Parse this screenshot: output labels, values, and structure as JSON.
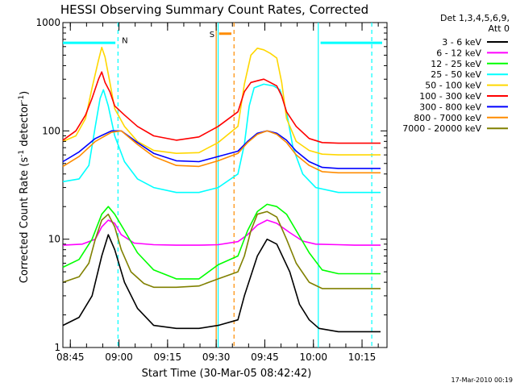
{
  "chart_data": {
    "type": "line",
    "title": "HESSI Observing Summary Count Rates, Corrected",
    "xlabel": "Start Time (30-Mar-05 08:42:42)",
    "ylabel_main": "Corrected Count Rate (s",
    "ylabel_sup1": "-1",
    "ylabel_mid": " detector",
    "ylabel_sup2": "-1",
    "ylabel_end": ")",
    "y_scale": "log",
    "ylim": [
      1,
      1000
    ],
    "xlim_minutes": [
      0,
      100
    ],
    "y_ticks": [
      {
        "value": 1,
        "label": "1"
      },
      {
        "value": 10,
        "label": "10"
      },
      {
        "value": 100,
        "label": "100"
      },
      {
        "value": 1000,
        "label": "1000"
      }
    ],
    "x_ticks": [
      {
        "minute": 2.3,
        "label": "08:45"
      },
      {
        "minute": 17.3,
        "label": "09:00"
      },
      {
        "minute": 32.3,
        "label": "09:15"
      },
      {
        "minute": 47.3,
        "label": "09:30"
      },
      {
        "minute": 62.3,
        "label": "09:45"
      },
      {
        "minute": 77.3,
        "label": "10:00"
      },
      {
        "minute": 92.3,
        "label": "10:15"
      }
    ],
    "legend_header_1": "Det 1,3,4,5,6,9,",
    "legend_header_2": "Att 0",
    "legend_placement": "right",
    "series": [
      {
        "name": "3 - 6 keV",
        "color": "#000000",
        "x": [
          0,
          5,
          9,
          12,
          14,
          16,
          19,
          23,
          28,
          35,
          42,
          47.9,
          54,
          56,
          60,
          63,
          66,
          70,
          73,
          76,
          79,
          85,
          90,
          95,
          98
        ],
        "y": [
          1.6,
          1.9,
          3,
          7,
          11,
          8,
          4,
          2.3,
          1.6,
          1.5,
          1.5,
          1.6,
          1.8,
          3,
          7,
          10,
          9,
          5,
          2.5,
          1.8,
          1.5,
          1.4,
          1.4,
          1.4,
          1.4
        ]
      },
      {
        "name": "6 - 12 keV",
        "color": "#ff00ff",
        "x": [
          0,
          6,
          10,
          12,
          14,
          16,
          18,
          22,
          28,
          35,
          42,
          47.9,
          54,
          57,
          60,
          63,
          66,
          70,
          74,
          78,
          85,
          90,
          95,
          98
        ],
        "y": [
          8.8,
          9,
          10,
          13,
          15,
          14,
          11,
          9.2,
          8.9,
          8.8,
          8.8,
          8.9,
          9.5,
          11,
          13.5,
          15,
          14,
          11.5,
          9.6,
          9,
          8.9,
          8.8,
          8.8,
          8.8
        ]
      },
      {
        "name": "12 - 25 keV",
        "color": "#00ff00",
        "x": [
          0,
          5,
          9,
          12,
          14,
          16,
          19,
          23,
          28,
          35,
          42,
          47.9,
          54,
          57,
          60,
          63,
          66,
          69,
          72,
          76,
          80,
          85,
          90,
          95,
          98
        ],
        "y": [
          5.5,
          6.5,
          10,
          17,
          20,
          17,
          12,
          7.5,
          5.2,
          4.3,
          4.3,
          5.8,
          7,
          12,
          18,
          21,
          20,
          17,
          12,
          7.5,
          5.2,
          4.8,
          4.8,
          4.8,
          4.8
        ]
      },
      {
        "name": "25 - 50 keV",
        "color": "#00ffff",
        "x": [
          0,
          5,
          8,
          10,
          11.5,
          12.5,
          14,
          16,
          19,
          23,
          28,
          35,
          42,
          47.9,
          54,
          56,
          57.5,
          59,
          62,
          65,
          67,
          69,
          71,
          74,
          78,
          85,
          90,
          95,
          98
        ],
        "y": [
          34,
          36,
          48,
          110,
          200,
          240,
          170,
          90,
          52,
          36,
          30,
          27,
          27,
          30,
          40,
          75,
          170,
          250,
          270,
          260,
          240,
          150,
          70,
          40,
          30,
          27,
          27,
          27,
          27
        ]
      },
      {
        "name": "50 - 100 keV",
        "color": "#ffd700",
        "x": [
          0,
          4,
          7,
          9,
          11,
          12,
          13,
          14.5,
          16,
          19,
          23,
          28,
          35,
          42,
          47.9,
          54,
          56,
          58,
          60,
          62,
          64,
          66,
          67.5,
          69,
          72,
          76,
          80,
          85,
          90,
          95,
          98
        ],
        "y": [
          80,
          90,
          130,
          250,
          450,
          590,
          480,
          280,
          160,
          110,
          80,
          66,
          62,
          63,
          78,
          110,
          270,
          500,
          580,
          560,
          520,
          470,
          280,
          130,
          80,
          66,
          61,
          60,
          60,
          60,
          60
        ]
      },
      {
        "name": "100 - 300 keV",
        "color": "#ff0000",
        "x": [
          0,
          4,
          7,
          9,
          11,
          12,
          13,
          14.5,
          16,
          19,
          23,
          28,
          35,
          42,
          47.9,
          54,
          56,
          58,
          60,
          62,
          64,
          66,
          67.5,
          69,
          72,
          76,
          80,
          85,
          90,
          95,
          98
        ],
        "y": [
          82,
          100,
          140,
          200,
          300,
          350,
          280,
          230,
          170,
          140,
          110,
          90,
          82,
          88,
          110,
          150,
          230,
          280,
          290,
          300,
          280,
          260,
          210,
          150,
          110,
          85,
          78,
          77,
          77,
          77,
          77
        ]
      },
      {
        "name": "300 - 800 keV",
        "color": "#0000ff",
        "x": [
          0,
          5,
          10,
          15,
          18,
          23,
          28,
          35,
          42,
          47.9,
          54,
          57,
          60,
          63,
          66,
          69,
          72,
          76,
          80,
          85,
          90,
          95,
          98
        ],
        "y": [
          52,
          64,
          85,
          100,
          100,
          78,
          62,
          53,
          52,
          58,
          65,
          80,
          95,
          100,
          95,
          82,
          65,
          52,
          46,
          45,
          45,
          45,
          45
        ]
      },
      {
        "name": "800 - 7000 keV",
        "color": "#ff8c00",
        "x": [
          0,
          5,
          10,
          15,
          18,
          23,
          28,
          35,
          42,
          47.9,
          54,
          57,
          60,
          63,
          66,
          69,
          72,
          76,
          80,
          85,
          90,
          95,
          98
        ],
        "y": [
          47,
          58,
          80,
          97,
          100,
          75,
          58,
          48,
          47,
          53,
          62,
          78,
          93,
          100,
          93,
          78,
          60,
          48,
          42,
          41,
          41,
          41,
          41
        ]
      },
      {
        "name": "7000 - 20000 keV",
        "color": "#808000",
        "x": [
          0,
          5,
          8,
          10,
          12,
          14,
          16,
          18,
          21,
          25,
          28,
          35,
          42,
          47.9,
          54,
          56,
          58,
          60,
          63,
          66,
          69,
          72,
          76,
          80,
          85,
          90,
          95,
          98
        ],
        "y": [
          4,
          4.5,
          6,
          10,
          15,
          17,
          13,
          8,
          5,
          3.9,
          3.6,
          3.6,
          3.7,
          4.3,
          5,
          7,
          12,
          17,
          18,
          16,
          10,
          6,
          4,
          3.5,
          3.5,
          3.5,
          3.5,
          3.5
        ]
      }
    ],
    "attenuator_bars": [
      {
        "x0": 0,
        "x1": 16.2,
        "value": 650,
        "color": "#00ffff"
      },
      {
        "x0": 79.5,
        "x1": 98.5,
        "value": 650,
        "color": "#00ffff"
      },
      {
        "x0": 48.2,
        "x1": 52,
        "value": 790,
        "color": "#ff8c00"
      }
    ],
    "vertical_markers": [
      {
        "x": 17,
        "color": "#00ffff",
        "style": "dashed"
      },
      {
        "x": 47.9,
        "color": "#00ffff",
        "style": "solid"
      },
      {
        "x": 47.3,
        "color": "#ff8c00",
        "style": "solid"
      },
      {
        "x": 52.8,
        "color": "#ff8c00",
        "style": "dashed"
      },
      {
        "x": 78.8,
        "color": "#00ffff",
        "style": "solid"
      },
      {
        "x": 95.3,
        "color": "#00ffff",
        "style": "dashed"
      }
    ],
    "annotations": [
      {
        "text": "N",
        "x": 18.2,
        "value": 690,
        "color": "#00aaff"
      },
      {
        "text": "S",
        "x": 45.2,
        "value": 790,
        "color": "#ff8c00"
      }
    ]
  },
  "footer_timestamp": "17-Mar-2010 00:19"
}
